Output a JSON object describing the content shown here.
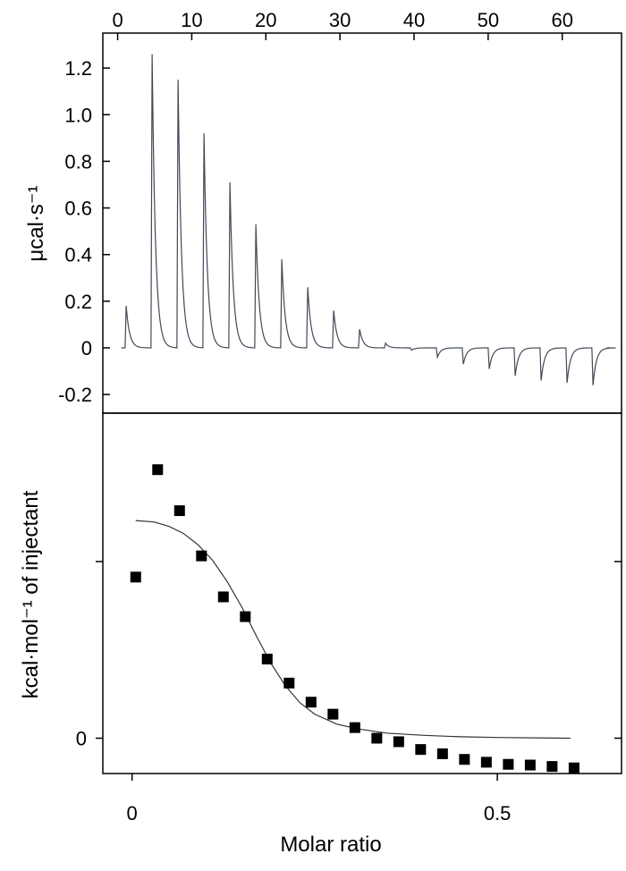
{
  "chart_data": [
    {
      "id": "thermogram",
      "type": "line",
      "ylabel": "μcal·s⁻¹",
      "xlim": [
        -2,
        68
      ],
      "ylim": [
        -0.28,
        1.35
      ],
      "x_ticks": [
        0,
        10,
        20,
        30,
        40,
        50,
        60
      ],
      "x_tick_labels": [
        "0",
        "10",
        "20",
        "30",
        "40",
        "50",
        "60"
      ],
      "y_ticks": [
        -0.2,
        0,
        0.2,
        0.4,
        0.6,
        0.8,
        1.0,
        1.2
      ],
      "y_tick_labels": [
        "-0.2",
        "0",
        "0.2",
        "0.4",
        "0.6",
        "0.8",
        "1.0",
        "1.2"
      ],
      "baseline": 0,
      "injection_times": [
        1.0,
        4.5,
        8.0,
        11.5,
        15.0,
        18.5,
        22.0,
        25.5,
        29.0,
        32.5,
        36.0,
        39.5,
        43.0,
        46.5,
        50.0,
        53.5,
        57.0,
        60.5,
        64.0
      ],
      "peak_heights": [
        0.18,
        1.26,
        1.15,
        0.92,
        0.71,
        0.53,
        0.38,
        0.26,
        0.16,
        0.08,
        0.02,
        -0.01,
        -0.04,
        -0.07,
        -0.09,
        -0.12,
        -0.14,
        -0.15,
        -0.16
      ],
      "grid": false
    },
    {
      "id": "binding-isotherm",
      "type": "scatter",
      "xlabel": "Molar ratio",
      "ylabel": "kcal·mol⁻¹ of injectant",
      "xlim": [
        -0.04,
        0.67
      ],
      "ylim": [
        -0.5,
        4.6
      ],
      "x_ticks": [
        0,
        0.5
      ],
      "x_tick_labels": [
        "0",
        "0.5"
      ],
      "y_ticks": [
        0,
        2.5,
        5
      ],
      "y_tick_labels": [
        "0",
        "",
        ""
      ],
      "points": {
        "x": [
          0.005,
          0.035,
          0.065,
          0.095,
          0.125,
          0.155,
          0.185,
          0.215,
          0.245,
          0.275,
          0.305,
          0.335,
          0.365,
          0.395,
          0.425,
          0.455,
          0.485,
          0.515,
          0.545,
          0.575,
          0.605
        ],
        "y": [
          2.28,
          3.8,
          3.22,
          2.58,
          2.0,
          1.72,
          1.12,
          0.78,
          0.51,
          0.34,
          0.15,
          0.0,
          -0.05,
          -0.16,
          -0.22,
          -0.3,
          -0.34,
          -0.37,
          -0.38,
          -0.4,
          -0.42
        ]
      },
      "fit": {
        "x": [
          0.005,
          0.03,
          0.05,
          0.07,
          0.09,
          0.11,
          0.13,
          0.15,
          0.17,
          0.19,
          0.21,
          0.23,
          0.25,
          0.28,
          0.31,
          0.35,
          0.4,
          0.45,
          0.5,
          0.55,
          0.6
        ],
        "y": [
          3.08,
          3.06,
          3.0,
          2.9,
          2.74,
          2.52,
          2.22,
          1.86,
          1.45,
          1.06,
          0.74,
          0.5,
          0.34,
          0.2,
          0.13,
          0.07,
          0.04,
          0.02,
          0.01,
          0.005,
          0.0
        ]
      },
      "grid": false
    }
  ]
}
